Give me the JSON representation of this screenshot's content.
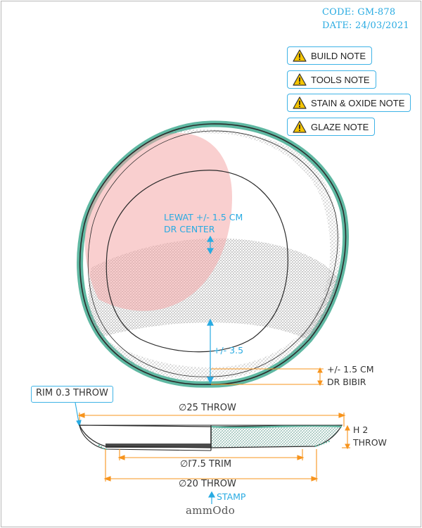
{
  "header": {
    "code": "CODE: GM-878",
    "date": "DATE: 24/03/2021"
  },
  "notes": [
    {
      "label": "BUILD NOTE"
    },
    {
      "label": "TOOLS NOTE"
    },
    {
      "label": "STAIN & OXIDE NOTE"
    },
    {
      "label": "GLAZE NOTE"
    }
  ],
  "top_view": {
    "center_label_line1": "LEWAT +/- 1.5 CM",
    "center_label_line2": "DR CENTER",
    "offset_label": "+/- 3.5",
    "edge_label_line1": "+/- 1.5 CM",
    "edge_label_line2": "DR BIBIR"
  },
  "side_view": {
    "rim_label": "RIM 0.3 THROW",
    "diameter_label": "∅25 THROW",
    "height_label_line1": "H 2",
    "height_label_line2": "THROW",
    "trim_label": "∅ľ7.5 TRIM",
    "base_label": "∅20 THROW",
    "stamp_label": "STAMP"
  },
  "logo": "ammOdo",
  "colors": {
    "accent_blue": "#29abe2",
    "dimension_orange": "#f7941d",
    "rim_teal": "#5fb8a2",
    "blush_pink": "#f4a7a7",
    "outline": "#2b2b2b"
  }
}
